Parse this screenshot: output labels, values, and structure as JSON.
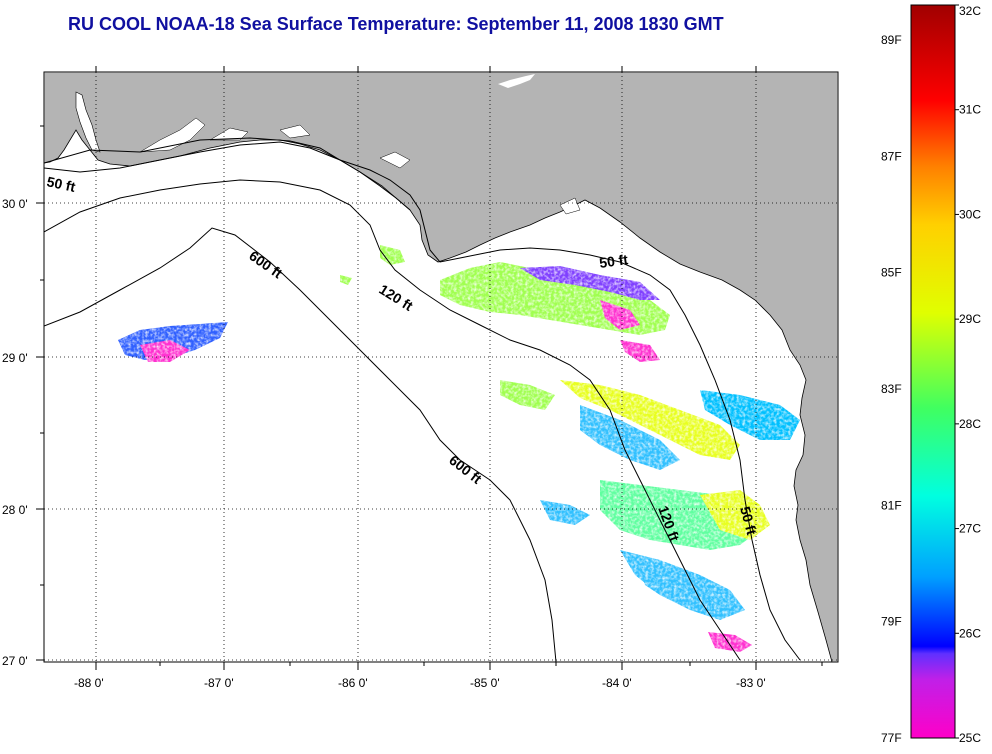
{
  "title": "RU COOL  NOAA-18  Sea Surface Temperature:  September 11, 2008 1830 GMT",
  "map": {
    "lon_ticks": [
      "-88 0'",
      "-87 0'",
      "-86 0'",
      "-85 0'",
      "-84 0'",
      "-83 0'"
    ],
    "lat_ticks": [
      "30 0'",
      "29 0'",
      "28 0'",
      "27 0'"
    ],
    "land_color": "#b4b4b4",
    "water_color": "#ffffff",
    "grid": "dotted",
    "contour_labels": {
      "c50_west": "50 ft",
      "c600_upper": "600 ft",
      "c120_upper": "120 ft",
      "c50_east": "50 ft",
      "c600_lower": "600 ft",
      "c120_lower": "120 ft",
      "c50_lower": "50 ft"
    }
  },
  "colorbar": {
    "celsius_labels": [
      "32C",
      "31C",
      "30C",
      "29C",
      "28C",
      "27C",
      "26C",
      "25C"
    ],
    "fahrenheit_labels": [
      "89F",
      "87F",
      "85F",
      "83F",
      "81F",
      "79F",
      "77F"
    ],
    "celsius_range": [
      25,
      32
    ],
    "fahrenheit_range": [
      77,
      89.6
    ],
    "stops": [
      "#ff00c8",
      "#8040ff",
      "#0000ff",
      "#00a0ff",
      "#00ffe0",
      "#40ff60",
      "#e0ff00",
      "#ffd000",
      "#ff8000",
      "#ff0000",
      "#a00000"
    ]
  }
}
